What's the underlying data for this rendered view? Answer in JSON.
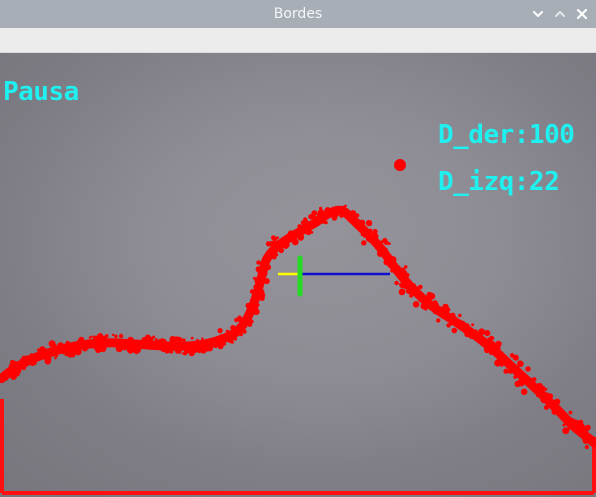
{
  "window": {
    "title": "Bordes",
    "controls": {
      "minimize_icon": "chevron-down-icon",
      "maximize_icon": "chevron-up-icon",
      "close_icon": "close-icon"
    }
  },
  "overlay": {
    "status": "Pausa",
    "d_der": "D_der:100",
    "d_izq": "D_izq:22"
  },
  "colors": {
    "titlebar": "#a7aeb6",
    "overlay_text": "#1ff0f0",
    "edge": "#ff0000",
    "left_marker": "#ffff00",
    "center_marker": "#22dd22",
    "right_marker": "#1010cc",
    "background": "#8a8890"
  }
}
